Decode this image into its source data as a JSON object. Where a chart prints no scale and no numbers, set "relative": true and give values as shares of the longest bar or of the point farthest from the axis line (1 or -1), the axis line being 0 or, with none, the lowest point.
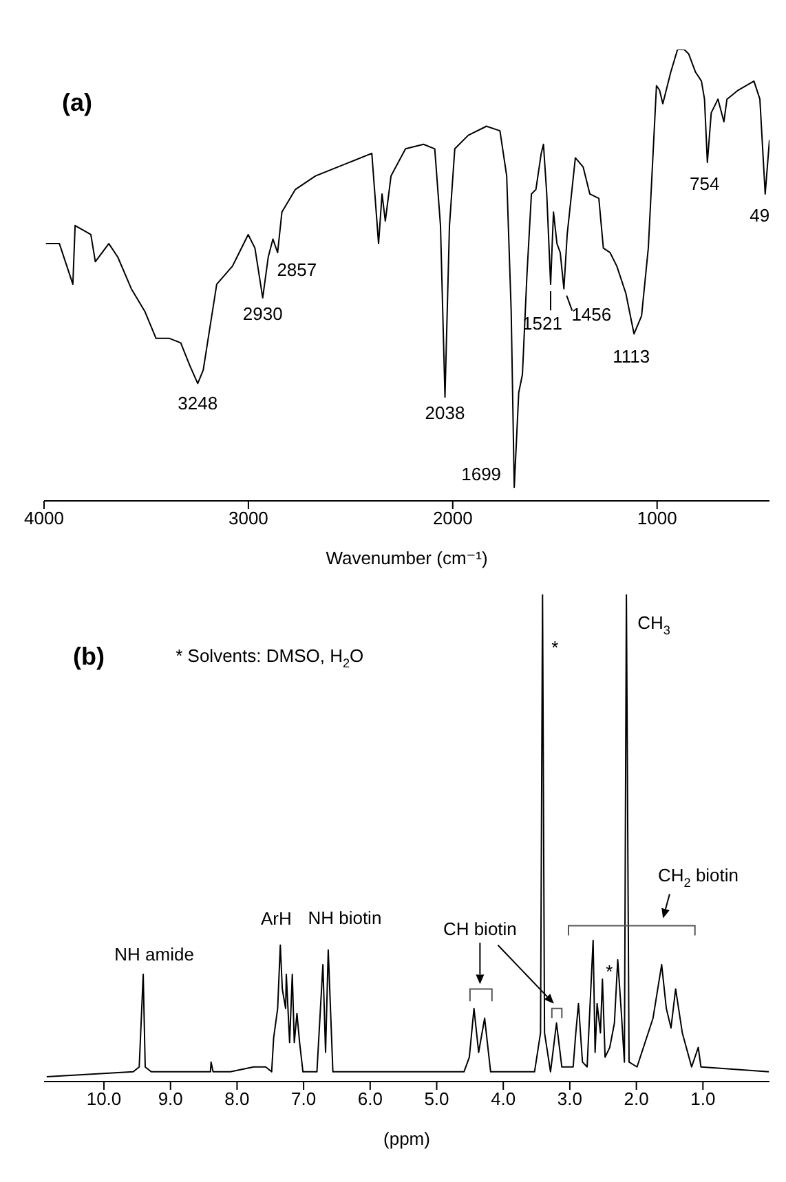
{
  "chart_data": [
    {
      "type": "line",
      "title": "(a)",
      "xlabel": "Wavenumber (cm⁻¹)",
      "relative": true,
      "xlim": [
        4000,
        450
      ],
      "xticks": [
        4000,
        3000,
        2000,
        1000
      ],
      "x": [
        3991,
        3925,
        3859,
        3848,
        3771,
        3749,
        3683,
        3639,
        3573,
        3507,
        3452,
        3386,
        3331,
        3287,
        3248,
        3221,
        3155,
        3078,
        3056,
        3001,
        2968,
        2930,
        2903,
        2880,
        2857,
        2836,
        2770,
        2671,
        2396,
        2363,
        2346,
        2330,
        2302,
        2231,
        2143,
        2088,
        2060,
        2038,
        2016,
        1990,
        1924,
        1835,
        1769,
        1736,
        1714,
        1699,
        1677,
        1659,
        1637,
        1615,
        1593,
        1567,
        1556,
        1540,
        1521,
        1507,
        1490,
        1474,
        1456,
        1440,
        1400,
        1362,
        1329,
        1285,
        1263,
        1230,
        1197,
        1153,
        1113,
        1076,
        1043,
        1003,
        988,
        972,
        933,
        900,
        867,
        845,
        812,
        783,
        768,
        754,
        735,
        702,
        673,
        658,
        603,
        526,
        497,
        471,
        450
      ],
      "series": [
        {
          "color": "#000000",
          "values": [
            0.57,
            0.57,
            0.48,
            0.61,
            0.59,
            0.53,
            0.57,
            0.54,
            0.47,
            0.42,
            0.36,
            0.36,
            0.35,
            0.3,
            0.26,
            0.29,
            0.48,
            0.52,
            0.54,
            0.59,
            0.56,
            0.45,
            0.54,
            0.58,
            0.55,
            0.64,
            0.69,
            0.72,
            0.77,
            0.57,
            0.68,
            0.62,
            0.72,
            0.78,
            0.79,
            0.78,
            0.61,
            0.23,
            0.61,
            0.78,
            0.81,
            0.83,
            0.82,
            0.72,
            0.42,
            0.03,
            0.24,
            0.28,
            0.5,
            0.68,
            0.69,
            0.77,
            0.79,
            0.68,
            0.48,
            0.64,
            0.57,
            0.55,
            0.47,
            0.59,
            0.76,
            0.74,
            0.68,
            0.67,
            0.56,
            0.55,
            0.52,
            0.46,
            0.37,
            0.41,
            0.56,
            0.92,
            0.91,
            0.88,
            0.95,
            1.0,
            1.0,
            0.99,
            0.95,
            0.93,
            0.89,
            0.75,
            0.86,
            0.89,
            0.84,
            0.89,
            0.91,
            0.93,
            0.89,
            0.68,
            0.8
          ]
        }
      ],
      "annotations": [
        {
          "text": "3248",
          "x": 3248,
          "y": 0.26
        },
        {
          "text": "2930",
          "x": 2930,
          "y": 0.45
        },
        {
          "text": "2857",
          "x": 2857,
          "y": 0.55
        },
        {
          "text": "2038",
          "x": 2038,
          "y": 0.23
        },
        {
          "text": "1699",
          "x": 1699,
          "y": 0.03
        },
        {
          "text": "1521",
          "x": 1521,
          "y": 0.48
        },
        {
          "text": "1456",
          "x": 1456,
          "y": 0.47
        },
        {
          "text": "1113",
          "x": 1113,
          "y": 0.37
        },
        {
          "text": "754",
          "x": 754,
          "y": 0.75
        },
        {
          "text": "49",
          "x": 471,
          "y": 0.68
        }
      ]
    },
    {
      "type": "line",
      "title": "(b)",
      "xlabel": "(ppm)",
      "relative": true,
      "xlim": [
        10.9,
        0
      ],
      "xticks": [
        {
          "value": 10,
          "label": "10.0"
        },
        {
          "value": 9,
          "label": "9.0"
        },
        {
          "value": 8,
          "label": "8.0"
        },
        {
          "value": 7,
          "label": "7.0"
        },
        {
          "value": 6,
          "label": "6.0"
        },
        {
          "value": 5,
          "label": "5.0"
        },
        {
          "value": 4,
          "label": "4.0"
        },
        {
          "value": 3,
          "label": "3.0"
        },
        {
          "value": 2,
          "label": "2.0"
        },
        {
          "value": 1,
          "label": "1.0"
        }
      ],
      "x": [
        10.86,
        9.56,
        9.47,
        9.41,
        9.38,
        9.29,
        8.4,
        8.39,
        8.36,
        8.1,
        7.75,
        7.57,
        7.48,
        7.45,
        7.39,
        7.35,
        7.32,
        7.27,
        7.26,
        7.21,
        7.17,
        7.14,
        7.1,
        7.06,
        7.01,
        6.8,
        6.71,
        6.67,
        6.63,
        6.56,
        6.03,
        5.96,
        4.59,
        4.51,
        4.44,
        4.37,
        4.28,
        4.19,
        3.53,
        3.44,
        3.41,
        3.38,
        3.29,
        3.2,
        3.12,
        2.95,
        2.91,
        2.87,
        2.81,
        2.74,
        2.65,
        2.62,
        2.59,
        2.54,
        2.51,
        2.47,
        2.4,
        2.33,
        2.28,
        2.23,
        2.18,
        2.15,
        2.11,
        1.99,
        1.75,
        1.62,
        1.55,
        1.48,
        1.41,
        1.31,
        1.17,
        1.07,
        1.03,
        0.01
      ],
      "series": [
        {
          "color": "#000000",
          "values": [
            0.01,
            0.02,
            0.03,
            0.22,
            0.03,
            0.02,
            0.02,
            0.04,
            0.02,
            0.02,
            0.03,
            0.03,
            0.02,
            0.09,
            0.15,
            0.28,
            0.19,
            0.15,
            0.22,
            0.08,
            0.22,
            0.08,
            0.14,
            0.08,
            0.02,
            0.02,
            0.24,
            0.06,
            0.27,
            0.02,
            0.02,
            0.02,
            0.02,
            0.05,
            0.15,
            0.06,
            0.13,
            0.02,
            0.02,
            0.1,
            1.0,
            0.1,
            0.02,
            0.12,
            0.03,
            0.03,
            0.1,
            0.16,
            0.04,
            0.03,
            0.29,
            0.06,
            0.16,
            0.1,
            0.21,
            0.05,
            0.07,
            0.12,
            0.25,
            0.15,
            0.04,
            1.0,
            0.04,
            0.03,
            0.13,
            0.24,
            0.15,
            0.11,
            0.19,
            0.1,
            0.03,
            0.07,
            0.03,
            0.02
          ]
        }
      ],
      "annotations": [
        "* Solvents: DMSO, H$_{2}$O",
        {
          "text": "NH amide",
          "x": 9.41,
          "y": 0.22
        },
        {
          "text": "ArH",
          "x": 7.35,
          "y": 0.28
        },
        {
          "text": "NH biotin",
          "x": 6.63,
          "y": 0.27
        },
        "CH biotin",
        {
          "text": "*",
          "x": 3.41,
          "y": 1.0
        },
        {
          "text": "*",
          "x": 2.51,
          "y": 0.21
        },
        {
          "text": "CH$_{3}$",
          "x": 2.15,
          "y": 1.0
        },
        "CH$_{2}$ biotin"
      ]
    }
  ]
}
